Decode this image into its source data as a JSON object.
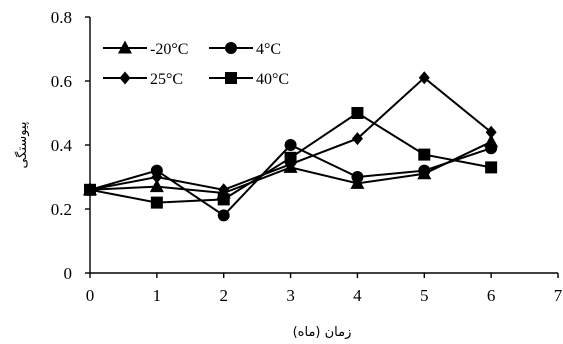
{
  "chart_data": {
    "type": "line",
    "title": "",
    "xlabel": "زمان (ماه)",
    "ylabel": "پیوستگی",
    "xlim": [
      0,
      7
    ],
    "ylim": [
      0,
      0.8
    ],
    "x_ticks": [
      "0",
      "1",
      "2",
      "3",
      "4",
      "5",
      "6",
      "7"
    ],
    "y_ticks": [
      "0",
      "0.2",
      "0.4",
      "0.6",
      "0.8"
    ],
    "grid": false,
    "legend_position": "top-left",
    "x": [
      0,
      1,
      2,
      3,
      4,
      5,
      6
    ],
    "series": [
      {
        "name": "-20°C",
        "marker": "triangle",
        "values": [
          0.26,
          0.27,
          0.25,
          0.33,
          0.28,
          0.31,
          0.41
        ]
      },
      {
        "name": "4°C",
        "marker": "circle",
        "values": [
          0.26,
          0.32,
          0.18,
          0.4,
          0.3,
          0.32,
          0.39
        ]
      },
      {
        "name": "25°C",
        "marker": "diamond",
        "values": [
          0.26,
          0.3,
          0.26,
          0.34,
          0.42,
          0.61,
          0.44
        ]
      },
      {
        "name": "40°C",
        "marker": "square",
        "values": [
          0.26,
          0.22,
          0.23,
          0.36,
          0.5,
          0.37,
          0.33
        ]
      }
    ]
  }
}
